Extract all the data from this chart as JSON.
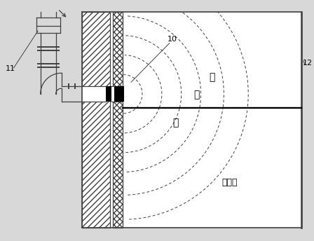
{
  "bg_color": "#d8d8d8",
  "line_color": "#404040",
  "label_11": "11",
  "label_10": "10",
  "label_12": "12",
  "text_chong": "冲",
  "text_ji": "击",
  "text_bo": "波",
  "text_heated": "受燭面",
  "fig_w": 4.48,
  "fig_h": 3.44,
  "dpi": 100
}
